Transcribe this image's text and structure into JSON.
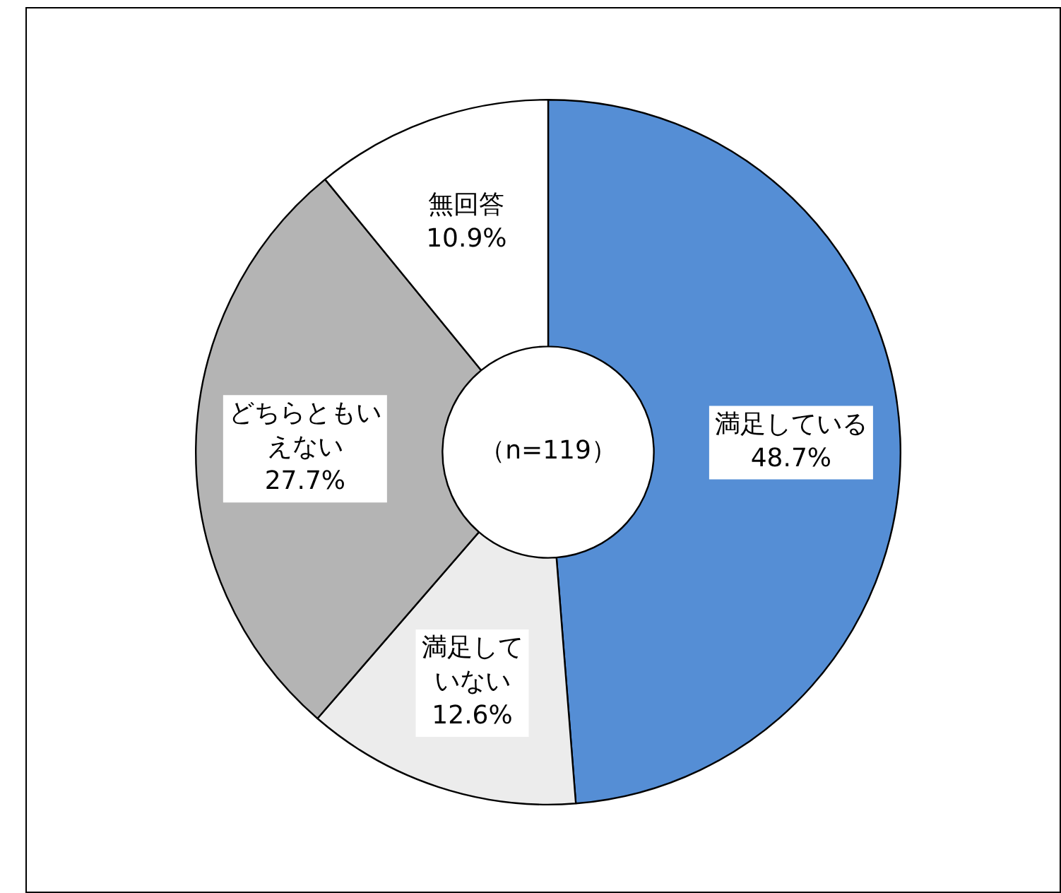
{
  "chart_data": {
    "type": "donut",
    "categories": [
      "満足している",
      "満足していない",
      "どちらともいえない",
      "無回答"
    ],
    "value_labels": [
      "48.7%",
      "12.6%",
      "27.7%",
      "10.9%"
    ],
    "values": [
      48.7,
      12.6,
      27.7,
      10.9
    ],
    "colors": [
      "#558ed5",
      "#ececec",
      "#b4b4b4",
      "#ffffff"
    ],
    "annotations": [
      "（n=119）"
    ],
    "legend": false
  }
}
